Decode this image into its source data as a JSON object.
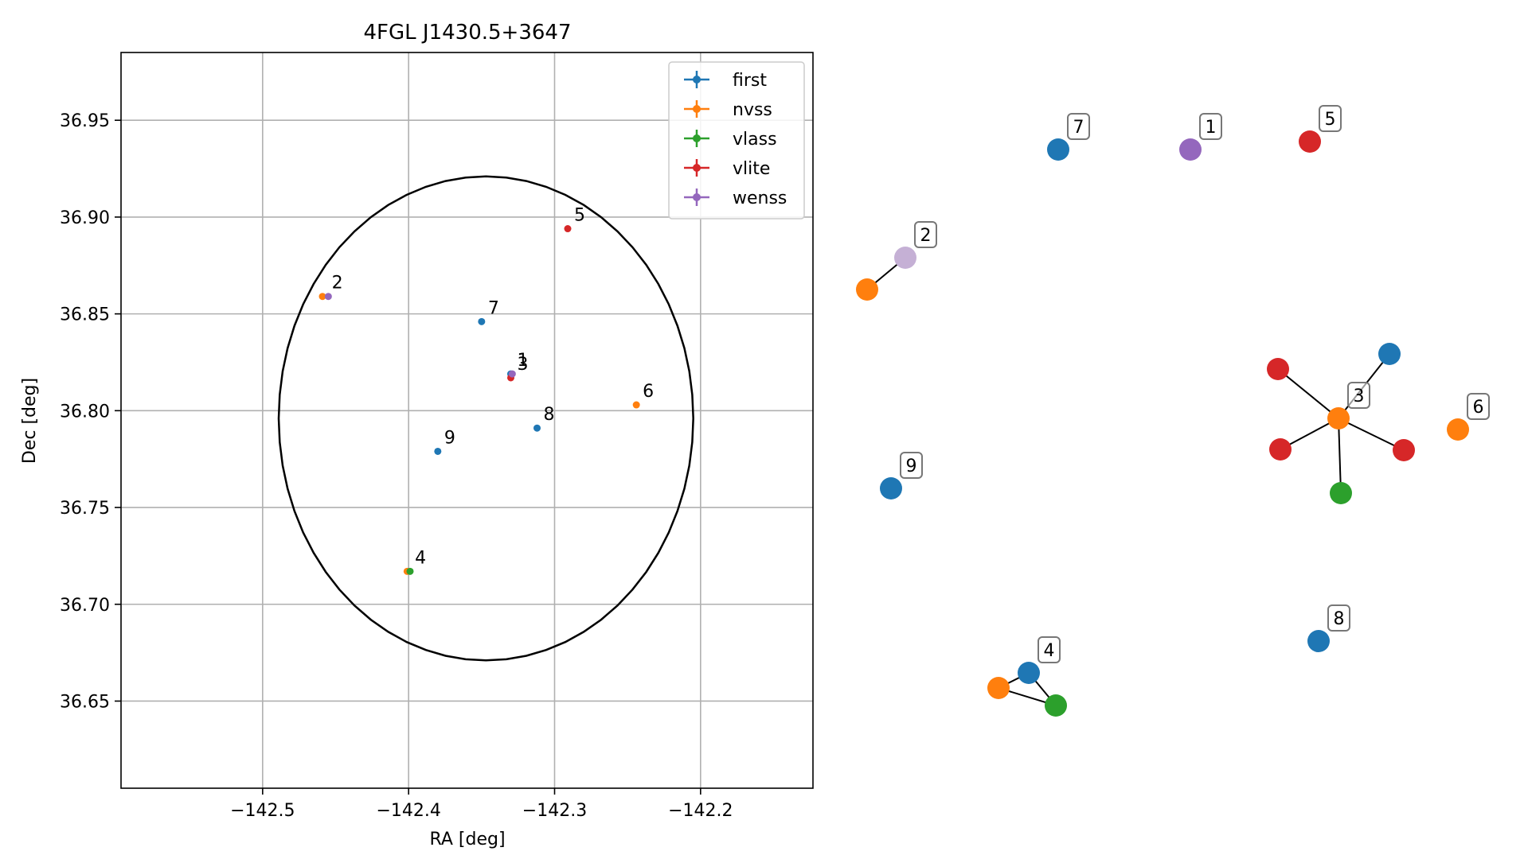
{
  "chart_data": [
    {
      "type": "scatter",
      "title": "4FGL J1430.5+3647",
      "xlabel": "RA [deg]",
      "ylabel": "Dec [deg]",
      "xlim": [
        -142.597,
        -142.123
      ],
      "ylim": [
        36.605,
        36.985
      ],
      "xticks": [
        -142.5,
        -142.4,
        -142.3,
        -142.2
      ],
      "xtick_labels": [
        "−142.5",
        "−142.4",
        "−142.3",
        "−142.2"
      ],
      "yticks": [
        36.65,
        36.7,
        36.75,
        36.8,
        36.85,
        36.9,
        36.95
      ],
      "ytick_labels": [
        "36.65",
        "36.70",
        "36.75",
        "36.80",
        "36.85",
        "36.90",
        "36.95"
      ],
      "grid": true,
      "legend_position": "top-right",
      "series": [
        {
          "name": "first",
          "color": "#1f77b4",
          "points": [
            [
              -142.35,
              36.846
            ],
            [
              -142.33,
              36.819
            ],
            [
              -142.312,
              36.791
            ],
            [
              -142.38,
              36.779
            ]
          ]
        },
        {
          "name": "nvss",
          "color": "#ff7f0e",
          "points": [
            [
              -142.459,
              36.859
            ],
            [
              -142.401,
              36.717
            ],
            [
              -142.244,
              36.803
            ]
          ]
        },
        {
          "name": "vlass",
          "color": "#2ca02c",
          "points": [
            [
              -142.399,
              36.717
            ]
          ]
        },
        {
          "name": "vlite",
          "color": "#d62728",
          "points": [
            [
              -142.291,
              36.894
            ],
            [
              -142.33,
              36.817
            ]
          ]
        },
        {
          "name": "wenss",
          "color": "#9467bd",
          "points": [
            [
              -142.455,
              36.859
            ],
            [
              -142.329,
              36.819
            ]
          ]
        }
      ],
      "point_labels": [
        {
          "text": "1",
          "x": -142.33,
          "y": 36.819
        },
        {
          "text": "2",
          "x": -142.457,
          "y": 36.859
        },
        {
          "text": "3",
          "x": -142.33,
          "y": 36.817
        },
        {
          "text": "4",
          "x": -142.4,
          "y": 36.717
        },
        {
          "text": "5",
          "x": -142.291,
          "y": 36.894
        },
        {
          "text": "6",
          "x": -142.244,
          "y": 36.803
        },
        {
          "text": "7",
          "x": -142.35,
          "y": 36.846
        },
        {
          "text": "8",
          "x": -142.312,
          "y": 36.791
        },
        {
          "text": "9",
          "x": -142.38,
          "y": 36.779
        }
      ],
      "ellipse": {
        "center": [
          -142.347,
          36.796
        ],
        "semi_axis_ra": 0.142,
        "semi_axis_dec": 0.125
      }
    },
    {
      "type": "network",
      "nodes": [
        {
          "id": "n7",
          "color": "#1f77b4",
          "label": "7"
        },
        {
          "id": "n1",
          "color": "#9467bd",
          "label": "1"
        },
        {
          "id": "n5",
          "color": "#d62728",
          "label": "5"
        },
        {
          "id": "n2o",
          "color": "#ff7f0e",
          "label": ""
        },
        {
          "id": "n2p",
          "color": "#c5b0d5",
          "label": "2"
        },
        {
          "id": "n3",
          "color": "#ff7f0e",
          "label": "3"
        },
        {
          "id": "n3b",
          "color": "#1f77b4",
          "label": ""
        },
        {
          "id": "n3r1",
          "color": "#d62728",
          "label": ""
        },
        {
          "id": "n3r2",
          "color": "#d62728",
          "label": ""
        },
        {
          "id": "n3r3",
          "color": "#d62728",
          "label": ""
        },
        {
          "id": "n3g",
          "color": "#2ca02c",
          "label": ""
        },
        {
          "id": "n6",
          "color": "#ff7f0e",
          "label": "6"
        },
        {
          "id": "n9",
          "color": "#1f77b4",
          "label": "9"
        },
        {
          "id": "n8",
          "color": "#1f77b4",
          "label": "8"
        },
        {
          "id": "n4b",
          "color": "#1f77b4",
          "label": "4"
        },
        {
          "id": "n4o",
          "color": "#ff7f0e",
          "label": ""
        },
        {
          "id": "n4g",
          "color": "#2ca02c",
          "label": ""
        }
      ],
      "edges": [
        [
          "n2o",
          "n2p"
        ],
        [
          "n3",
          "n3b"
        ],
        [
          "n3",
          "n3r1"
        ],
        [
          "n3",
          "n3r2"
        ],
        [
          "n3",
          "n3r3"
        ],
        [
          "n3",
          "n3g"
        ],
        [
          "n4b",
          "n4o"
        ],
        [
          "n4b",
          "n4g"
        ],
        [
          "n4o",
          "n4g"
        ]
      ]
    }
  ]
}
